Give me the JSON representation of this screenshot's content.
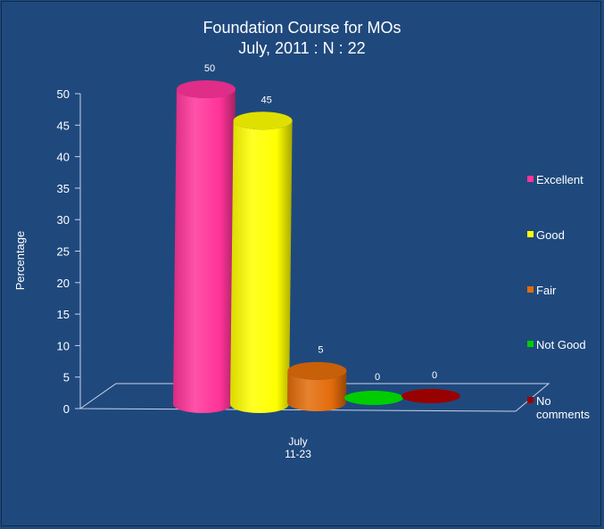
{
  "chart_data": {
    "type": "bar",
    "title": "Foundation Course for  MOs",
    "subtitle": "July, 2011 : N : 22",
    "ylabel": "Percentage",
    "xlabel": "",
    "categories": [
      "July\n11-23"
    ],
    "category_lines": [
      "July",
      "11-23"
    ],
    "ylim": [
      0,
      50
    ],
    "y_ticks": [
      "0",
      "5",
      "10",
      "15",
      "20",
      "25",
      "30",
      "35",
      "40",
      "45",
      "50"
    ],
    "grid": false,
    "legend_position": "right",
    "series": [
      {
        "name": "Excellent",
        "values": [
          50
        ],
        "color": "#ff3399"
      },
      {
        "name": "Good",
        "values": [
          45
        ],
        "color": "#ffff00"
      },
      {
        "name": "Fair",
        "values": [
          5
        ],
        "color": "#e36c0a"
      },
      {
        "name": "Not Good",
        "values": [
          0
        ],
        "color": "#00cc00"
      },
      {
        "name": "No\ncomments",
        "values": [
          0
        ],
        "color": "#990000"
      }
    ]
  },
  "colors": {
    "background": "#1f497d",
    "axis": "#c8d4e6"
  }
}
